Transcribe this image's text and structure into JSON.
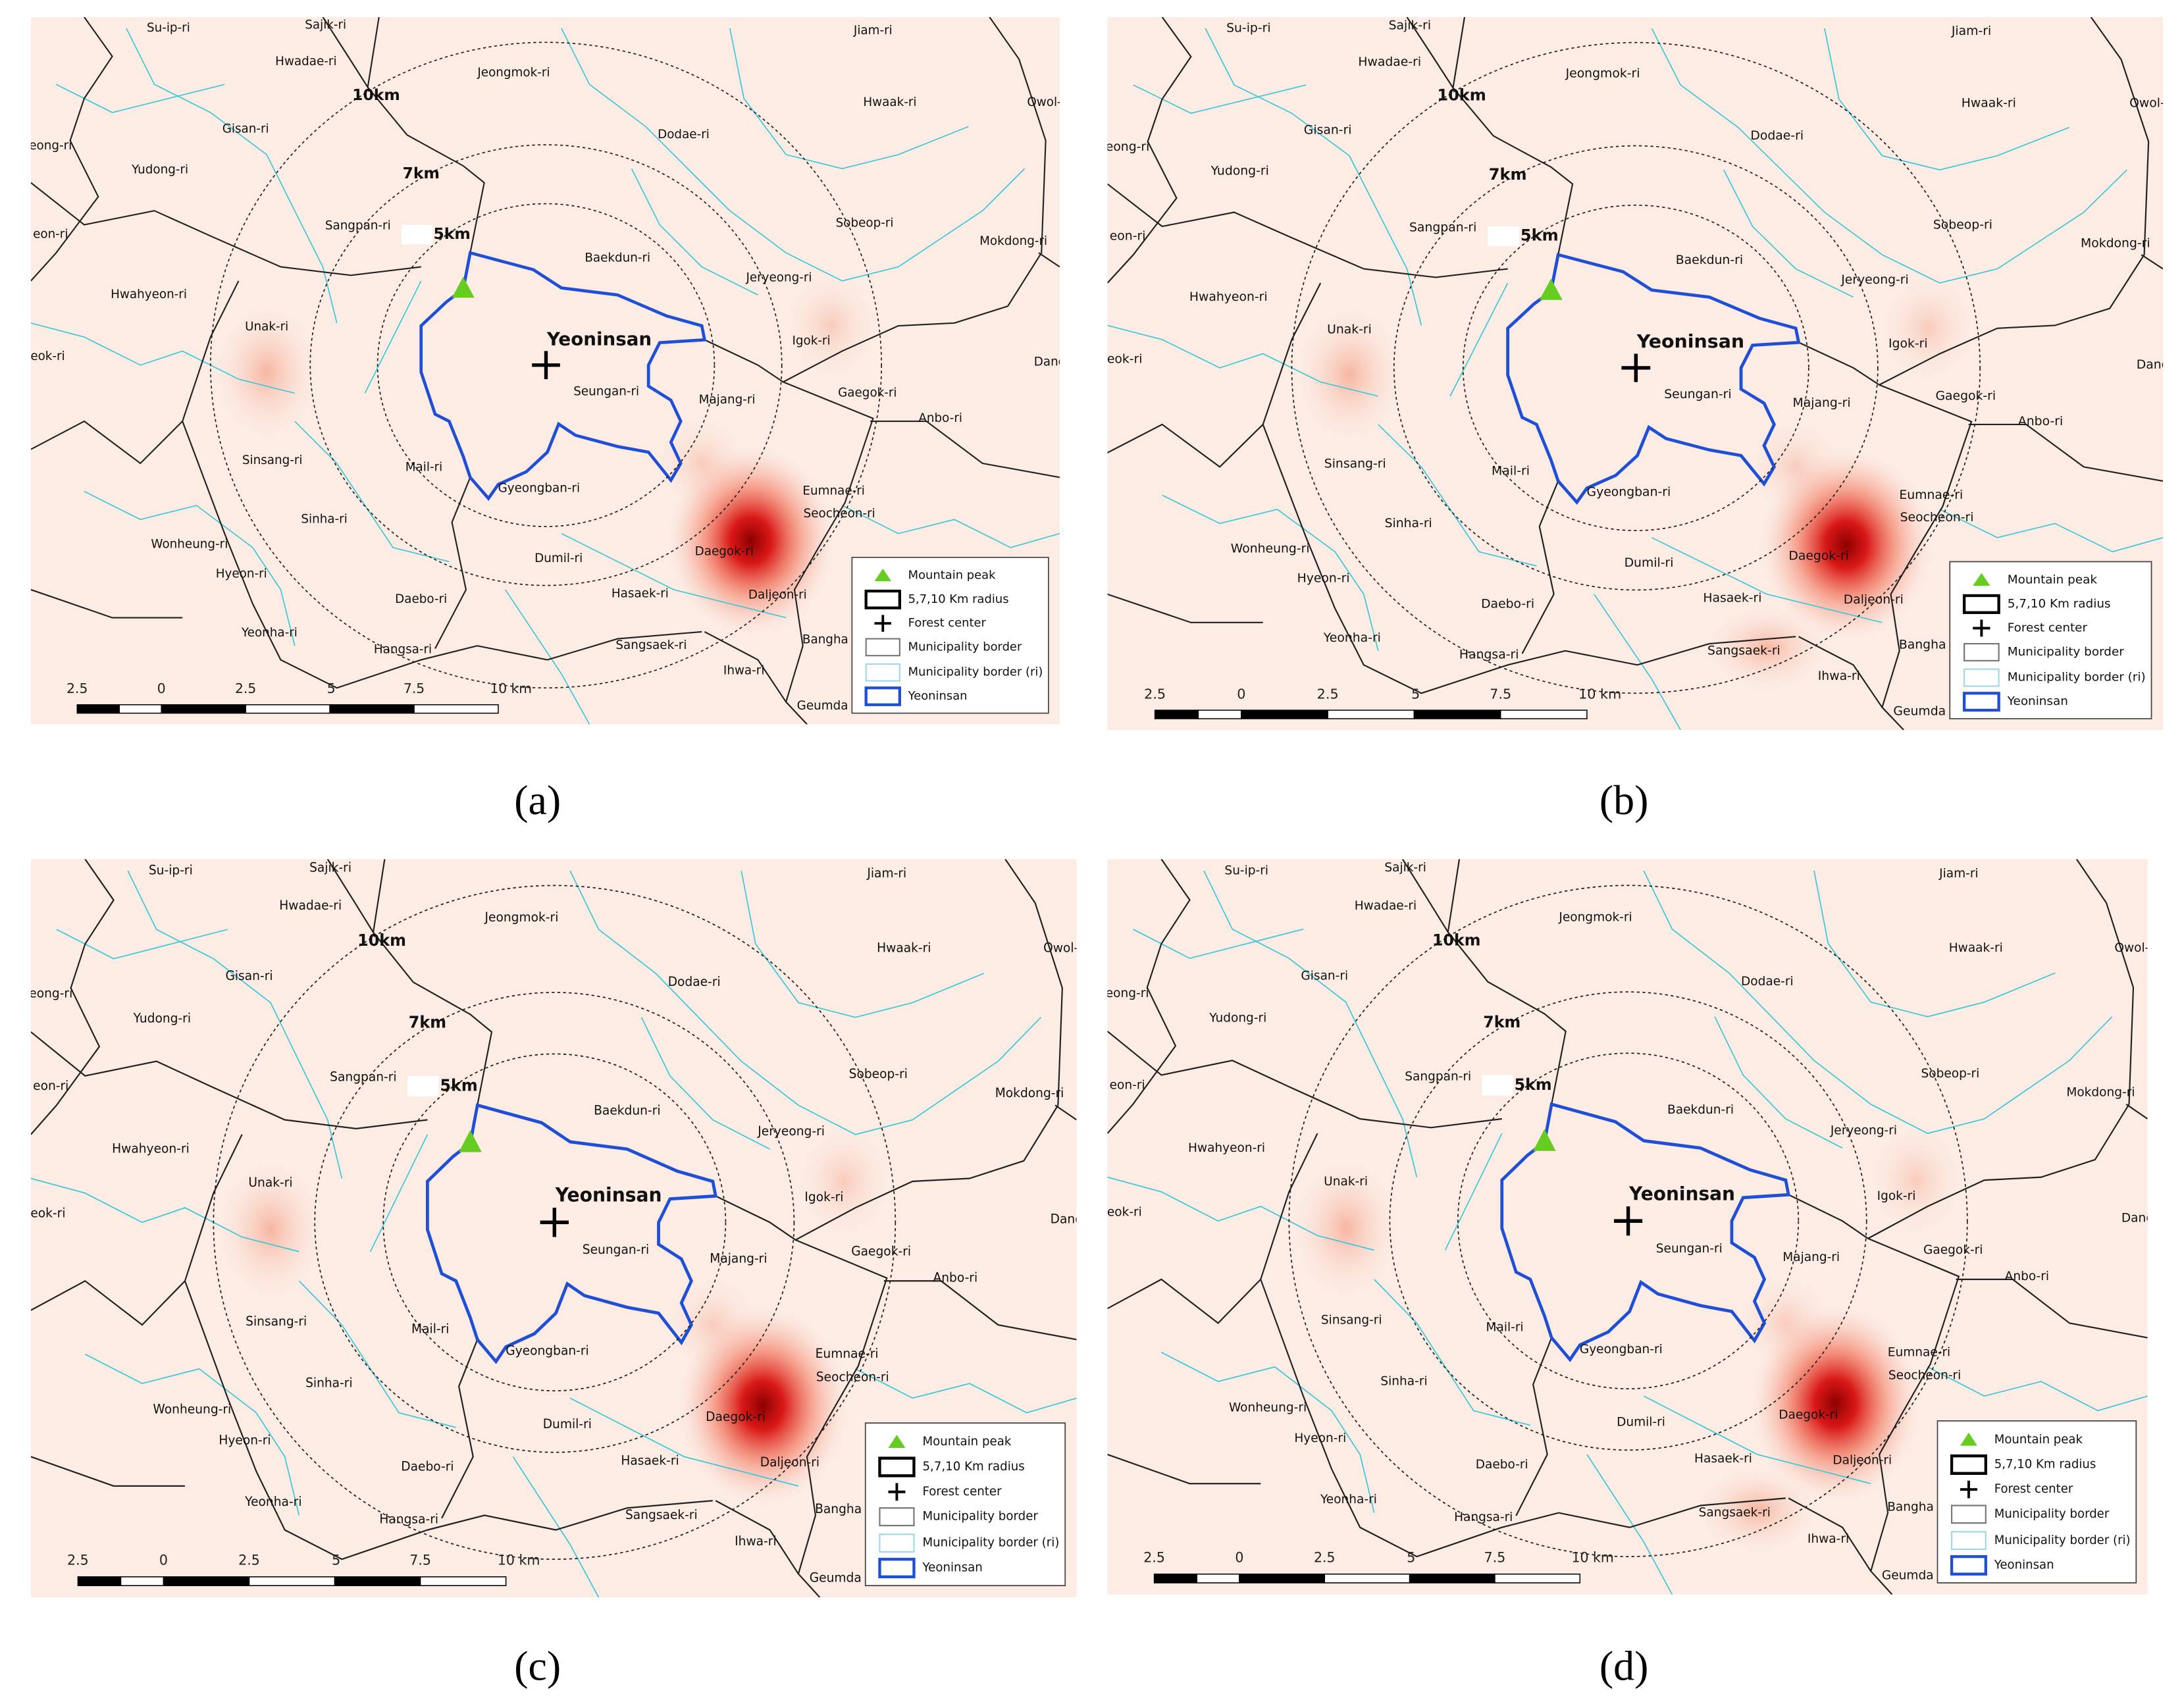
{
  "places": [
    "Su-ip-ri",
    "Sajik-ri",
    "Hwadae-ri",
    "Jeongmok-ri",
    "Jiam-ri",
    "Hwaak-ri",
    "Owol-",
    "Gisan-ri",
    "Dodae-ri",
    "eong-ri",
    "Yudong-ri",
    "Sangpan-ri",
    "Sobeop-ri",
    "Mokdong-ri",
    "eon-ri",
    "Baekdun-ri",
    "Jeryeong-ri",
    "Hwahyeon-ri",
    "Unak-ri",
    "Igok-ri",
    "eok-ri",
    "Dang",
    "Seungan-ri",
    "Majang-ri",
    "Gaegok-ri",
    "Anbo-ri",
    "Sinsang-ri",
    "Mail-ri",
    "Gyeongban-ri",
    "Eumnae-ri",
    "Seocheon-ri",
    "Sinha-ri",
    "Wonheung-ri",
    "Dumil-ri",
    "Daegok-ri",
    "Hyeon-ri",
    "Daebo-ri",
    "Hasaek-ri",
    "Daljeon-ri",
    "Yeonha-ri",
    "Bangha",
    "Hangsa-ri",
    "Sangsaek-ri",
    "Ihwa-ri",
    "Geumda"
  ],
  "circle_labels": [
    "5km",
    "7km",
    "10km"
  ],
  "center_label": "Yeoninsan",
  "legend": [
    "Mountain peak",
    "5,7,10 Km radius",
    "Forest center",
    "Municipality border",
    "Municipality border (ri)",
    "Yeoninsan"
  ],
  "scale_labels": [
    "2.5",
    "0",
    "2.5",
    "5",
    "7.5",
    "10 km"
  ],
  "panels": [
    {
      "label": "(a)"
    },
    {
      "label": "(b)"
    },
    {
      "label": "(c)"
    },
    {
      "label": "(d)"
    }
  ]
}
